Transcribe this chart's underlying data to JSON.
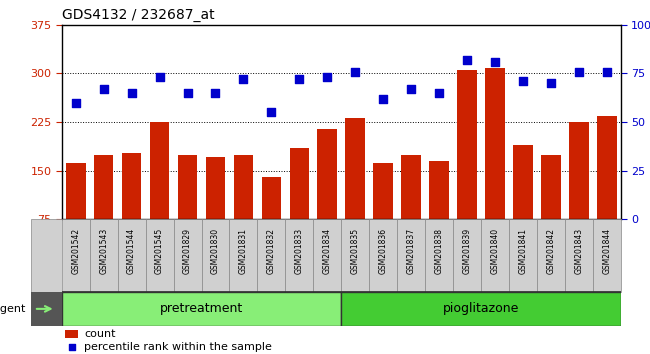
{
  "title": "GDS4132 / 232687_at",
  "samples": [
    "GSM201542",
    "GSM201543",
    "GSM201544",
    "GSM201545",
    "GSM201829",
    "GSM201830",
    "GSM201831",
    "GSM201832",
    "GSM201833",
    "GSM201834",
    "GSM201835",
    "GSM201836",
    "GSM201837",
    "GSM201838",
    "GSM201839",
    "GSM201840",
    "GSM201841",
    "GSM201842",
    "GSM201843",
    "GSM201844"
  ],
  "counts": [
    162,
    175,
    178,
    225,
    175,
    172,
    175,
    140,
    185,
    215,
    232,
    162,
    175,
    165,
    305,
    308,
    190,
    175,
    225,
    235
  ],
  "percentiles": [
    60,
    67,
    65,
    73,
    65,
    65,
    72,
    55,
    72,
    73,
    76,
    62,
    67,
    65,
    82,
    81,
    71,
    70,
    76,
    76
  ],
  "pretreatment_count": 10,
  "pioglitazone_count": 10,
  "ylim_left": [
    75,
    375
  ],
  "ylim_right": [
    0,
    100
  ],
  "yticks_left": [
    75,
    150,
    225,
    300,
    375
  ],
  "yticks_right": [
    0,
    25,
    50,
    75,
    100
  ],
  "bar_color": "#cc2200",
  "dot_color": "#0000cc",
  "pretreatment_color": "#88ee77",
  "pioglitazone_color": "#44cc33",
  "grid_color": "#000000",
  "tick_label_color_left": "#cc2200",
  "tick_label_color_right": "#0000cc",
  "xlabel_pretreatment": "pretreatment",
  "xlabel_pioglitazone": "pioglitazone",
  "legend_count": "count",
  "legend_percentile": "percentile rank within the sample",
  "agent_label": "agent"
}
